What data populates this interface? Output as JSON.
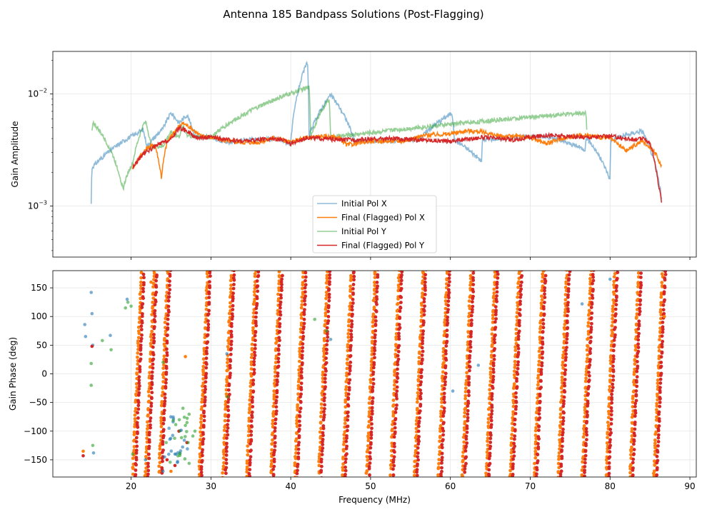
{
  "figure": {
    "title": "Antenna 185 Bandpass Solutions (Post-Flagging)"
  },
  "colors": {
    "initial_x": "#1f77b4",
    "final_x": "#ff7f0e",
    "initial_y": "#2ca02c",
    "final_y": "#d62728",
    "grid": "#e6e6e6"
  },
  "chart_data": [
    {
      "type": "line",
      "panel": "top",
      "xlabel": "",
      "ylabel": "Gain Amplitude",
      "xlim": [
        10.2,
        90.8
      ],
      "ylim": [
        0.00035,
        0.024
      ],
      "yscale": "log",
      "grid": true,
      "legend_position": "lower-center",
      "y_ticks": [
        {
          "value": 0.01,
          "label": "10",
          "exp": "−2"
        },
        {
          "value": 0.001,
          "label": "10",
          "exp": "−3"
        }
      ],
      "series": [
        {
          "name": "Initial Pol X",
          "color": "#1f77b4",
          "x": [
            15.0,
            15.1,
            21.5,
            22,
            24,
            25,
            26,
            27,
            28,
            30,
            32,
            35,
            38,
            40,
            42.1,
            42.3,
            45,
            48,
            52,
            56,
            60.2,
            60.5,
            63.9,
            64,
            68,
            72,
            76.9,
            77,
            80,
            80.1,
            84,
            86.5
          ],
          "y": [
            0.00105,
            0.0022,
            0.0048,
            0.0034,
            0.0049,
            0.0068,
            0.0055,
            0.0065,
            0.0042,
            0.0041,
            0.0037,
            0.0039,
            0.004,
            0.0036,
            0.0195,
            0.0042,
            0.0098,
            0.0038,
            0.0038,
            0.0039,
            0.0068,
            0.0039,
            0.0025,
            0.0039,
            0.0041,
            0.0042,
            0.0032,
            0.0041,
            0.0017,
            0.0039,
            0.0047,
            0.0011
          ]
        },
        {
          "name": "Final (Flagged) Pol X",
          "color": "#ff7f0e",
          "x": [
            20.2,
            21,
            22,
            23,
            23.8,
            24.5,
            25.5,
            26.5,
            27.5,
            28.5,
            30,
            32,
            34,
            36,
            38,
            40,
            42,
            44,
            46,
            47,
            50,
            54,
            57,
            60,
            62,
            64,
            66,
            68,
            70,
            72,
            74,
            76,
            78,
            80,
            82,
            84,
            85.5,
            86.5
          ],
          "y": [
            0.0022,
            0.0027,
            0.0033,
            0.0035,
            0.0018,
            0.0037,
            0.0047,
            0.0055,
            0.005,
            0.0043,
            0.0041,
            0.0038,
            0.0037,
            0.0037,
            0.0041,
            0.0037,
            0.0041,
            0.0042,
            0.0041,
            0.0035,
            0.0038,
            0.0038,
            0.0043,
            0.0044,
            0.0047,
            0.0046,
            0.0042,
            0.0042,
            0.0041,
            0.0036,
            0.004,
            0.0043,
            0.0042,
            0.004,
            0.0031,
            0.0038,
            0.0031,
            0.0022
          ]
        },
        {
          "name": "Initial Pol Y",
          "color": "#2ca02c",
          "x": [
            15.1,
            15.2,
            19,
            19.5,
            20.2,
            21.8,
            22.5,
            24,
            25,
            26,
            26.5,
            27,
            28,
            30,
            42.3,
            42.5,
            44.8,
            45,
            77,
            77.1
          ],
          "y": [
            0.0046,
            0.0056,
            0.0014,
            0.0019,
            0.0024,
            0.0058,
            0.0034,
            0.0034,
            0.0046,
            0.0041,
            0.0052,
            0.0043,
            0.0042,
            0.0041,
            0.0115,
            0.0042,
            0.009,
            0.0041,
            0.0068,
            0.0044
          ]
        },
        {
          "name": "Final (Flagged) Pol Y",
          "color": "#d62728",
          "x": [
            20.2,
            21.5,
            23,
            24,
            25,
            26,
            27,
            28,
            30,
            32,
            34,
            36,
            38,
            39,
            40,
            42,
            44,
            46,
            48,
            52,
            56,
            60,
            64,
            68,
            72,
            76,
            80,
            82,
            83,
            84,
            85,
            86,
            86.5
          ],
          "y": [
            0.0022,
            0.0029,
            0.0034,
            0.0037,
            0.0039,
            0.005,
            0.0047,
            0.0041,
            0.0041,
            0.0039,
            0.0038,
            0.0039,
            0.004,
            0.0039,
            0.0036,
            0.0041,
            0.004,
            0.0039,
            0.0039,
            0.004,
            0.0039,
            0.0038,
            0.0041,
            0.0039,
            0.0043,
            0.0041,
            0.0042,
            0.004,
            0.0039,
            0.004,
            0.0037,
            0.0016,
            0.00105
          ]
        }
      ]
    },
    {
      "type": "scatter",
      "panel": "bottom",
      "xlabel": "Frequency (MHz)",
      "ylabel": "Gain Phase (deg)",
      "xlim": [
        10.2,
        90.8
      ],
      "ylim": [
        -180,
        180
      ],
      "x_ticks": [
        20,
        30,
        40,
        50,
        60,
        70,
        80,
        90
      ],
      "y_ticks": [
        -150,
        -100,
        -50,
        0,
        50,
        100,
        150
      ],
      "grid": true,
      "phase_wrap_start_mhz": [
        20.2,
        21.8,
        23.5,
        28.5,
        31.5,
        34.5,
        37.5,
        40.5,
        43.5,
        46.5,
        49.5,
        52.5,
        55.5,
        58.5,
        61.5,
        64.5,
        67.5,
        70.5,
        73.5,
        76.5,
        79.5,
        82.5,
        85.5
      ],
      "phase_wrap_width_mhz": 1.1,
      "series": [
        {
          "name": "Initial Pol X",
          "color": "#1f77b4",
          "x": [
            14.2,
            14.3,
            15.0,
            15.1,
            15.2,
            15.3,
            17.4,
            19.5,
            21.8,
            24.0,
            24.2,
            25.5,
            32.0,
            45.0,
            60.3,
            63.5,
            76.5,
            80.0
          ],
          "y": [
            86,
            65,
            142,
            105,
            50,
            -138,
            67,
            130,
            -150,
            -170,
            -145,
            -140,
            35,
            60,
            -30,
            15,
            122,
            165
          ]
        },
        {
          "name": "Final (Flagged) Pol X",
          "color": "#ff7f0e",
          "x": [
            14.0,
            22.5,
            25.0,
            26.8,
            86.8
          ],
          "y": [
            -135,
            160,
            -170,
            30,
            100
          ]
        },
        {
          "name": "Initial Pol Y",
          "color": "#2ca02c",
          "x": [
            15.0,
            15.0,
            15.2,
            16.4,
            17.5,
            19.3,
            19.6,
            20.0,
            20.2,
            24.0,
            24.4,
            26.5,
            26.8,
            28.0,
            32.1,
            43.0,
            44.5
          ],
          "y": [
            -20,
            18,
            -125,
            58,
            42,
            115,
            125,
            118,
            -140,
            20,
            -120,
            -60,
            -90,
            -100,
            -40,
            95,
            75
          ]
        },
        {
          "name": "Final (Flagged) Pol Y",
          "color": "#d62728",
          "x": [
            14.0,
            15.1,
            24.5,
            25.5,
            26.0,
            27.0
          ],
          "y": [
            -143,
            48,
            -150,
            -160,
            -100,
            -120
          ]
        }
      ]
    }
  ]
}
